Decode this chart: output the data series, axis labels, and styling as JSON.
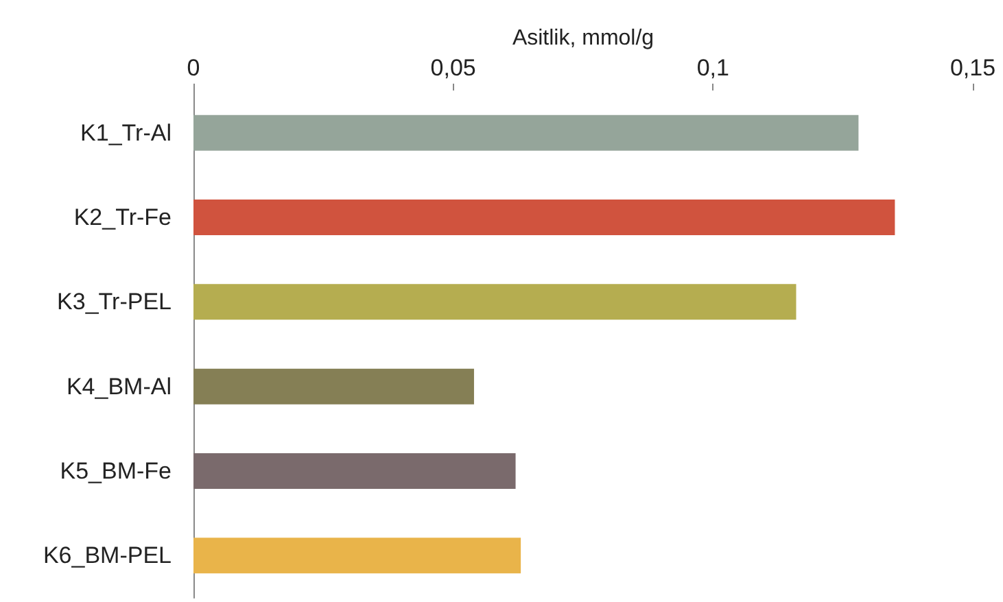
{
  "chart_data": {
    "type": "bar",
    "orientation": "horizontal",
    "xlabel": "Asitlik, mmol/g",
    "categories": [
      "K1_Tr-Al",
      "K2_Tr-Fe",
      "K3_Tr-PEL",
      "K4_BM-Al",
      "K5_BM-Fe",
      "K6_BM-PEL"
    ],
    "values": [
      0.128,
      0.135,
      0.116,
      0.054,
      0.062,
      0.063
    ],
    "colors": [
      "#95a59a",
      "#d0533e",
      "#b5ad50",
      "#857f55",
      "#7a6a6c",
      "#e9b44a"
    ],
    "xlim": [
      0,
      0.15
    ],
    "xticks": [
      0,
      {
        "value": 0.05,
        "label": "0,05"
      },
      {
        "value": 0.1,
        "label": "0,1"
      },
      {
        "value": 0.15,
        "label": "0,15"
      }
    ],
    "grid": false
  }
}
